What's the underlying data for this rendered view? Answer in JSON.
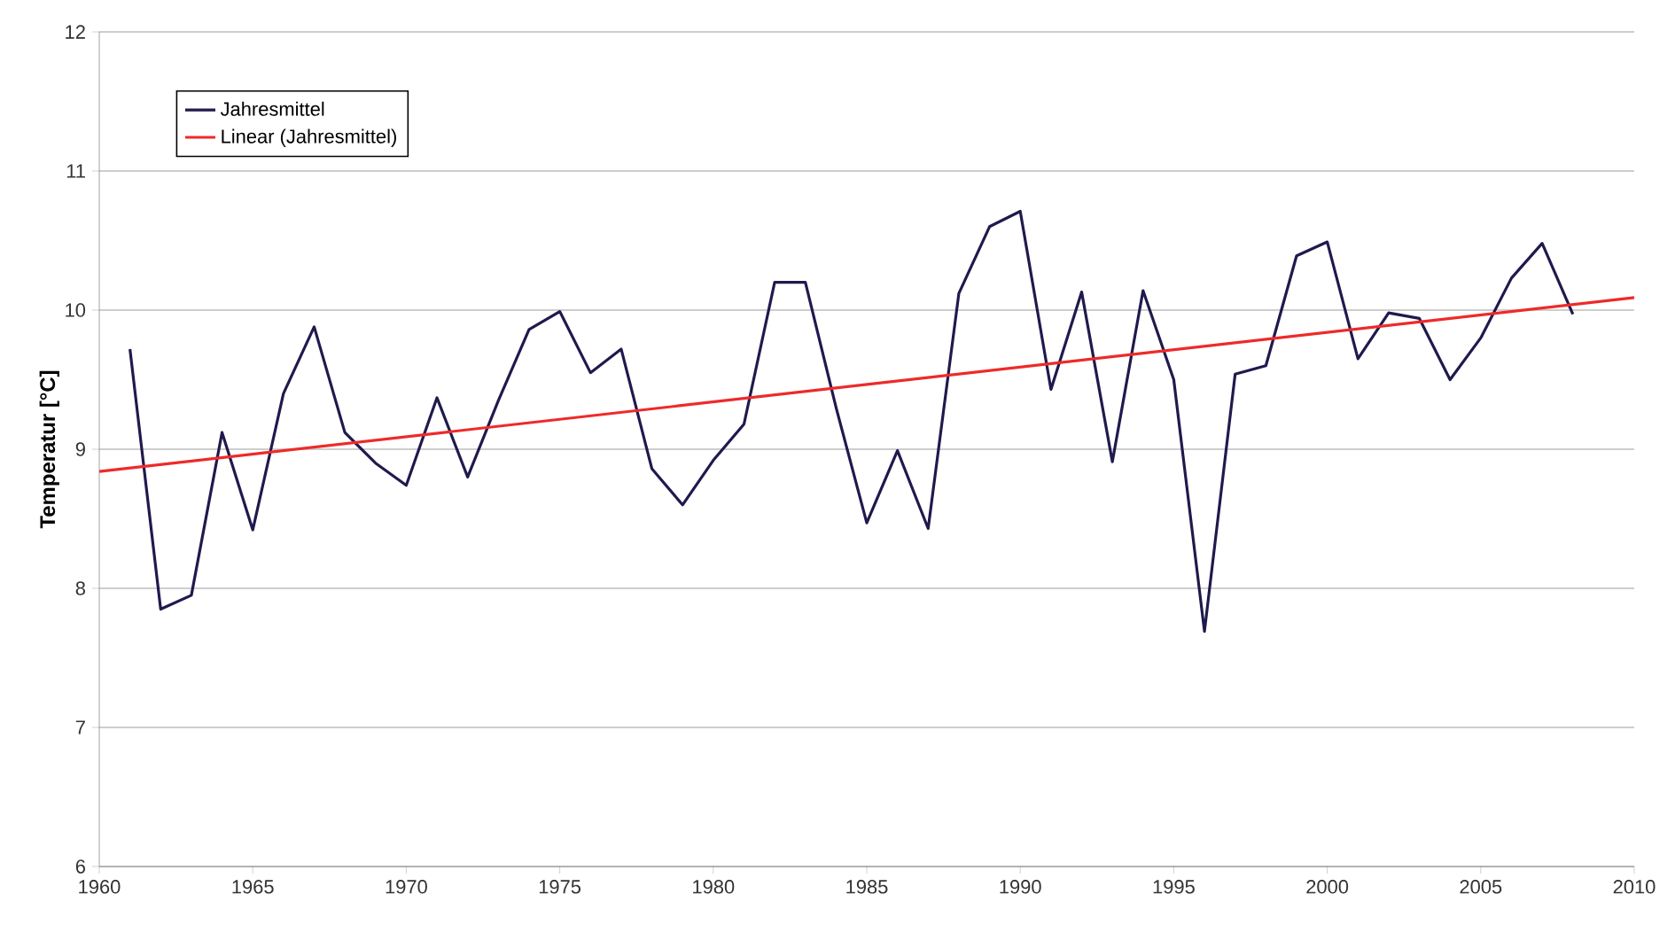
{
  "chart_data": {
    "type": "line",
    "ylabel": "Temperatur [°C]",
    "xlim": [
      1960,
      2010
    ],
    "ylim": [
      6,
      12
    ],
    "xticks": [
      1960,
      1965,
      1970,
      1975,
      1980,
      1985,
      1990,
      1995,
      2000,
      2005,
      2010
    ],
    "yticks": [
      6,
      7,
      8,
      9,
      10,
      11,
      12
    ],
    "grid": "y",
    "legend": "top left",
    "marker": "none",
    "line_style": "solid",
    "series": [
      {
        "name": "Jahresmittel",
        "color": "#1f1a4d",
        "x": [
          1961,
          1962,
          1963,
          1964,
          1965,
          1966,
          1967,
          1968,
          1969,
          1970,
          1971,
          1972,
          1973,
          1974,
          1975,
          1976,
          1977,
          1978,
          1979,
          1980,
          1981,
          1982,
          1983,
          1984,
          1985,
          1986,
          1987,
          1988,
          1989,
          1990,
          1991,
          1992,
          1993,
          1994,
          1995,
          1996,
          1997,
          1998,
          1999,
          2000,
          2001,
          2002,
          2003,
          2004,
          2005,
          2006,
          2007,
          2008
        ],
        "values": [
          9.72,
          7.85,
          7.95,
          9.12,
          8.42,
          9.4,
          9.88,
          9.12,
          8.9,
          8.74,
          9.37,
          8.8,
          9.35,
          9.86,
          9.99,
          9.55,
          9.72,
          8.86,
          8.6,
          8.92,
          9.18,
          10.2,
          10.2,
          9.3,
          8.47,
          8.99,
          8.43,
          10.12,
          10.6,
          10.71,
          9.43,
          10.13,
          8.91,
          10.14,
          9.5,
          7.69,
          9.54,
          9.6,
          10.39,
          10.49,
          9.65,
          9.98,
          9.94,
          9.5,
          9.8,
          10.23,
          10.48,
          9.97
        ]
      },
      {
        "name": "Linear (Jahresmittel)",
        "type": "line",
        "color": "#ee2a2a",
        "x": [
          1960,
          2010
        ],
        "values": [
          8.84,
          10.09
        ]
      }
    ]
  }
}
